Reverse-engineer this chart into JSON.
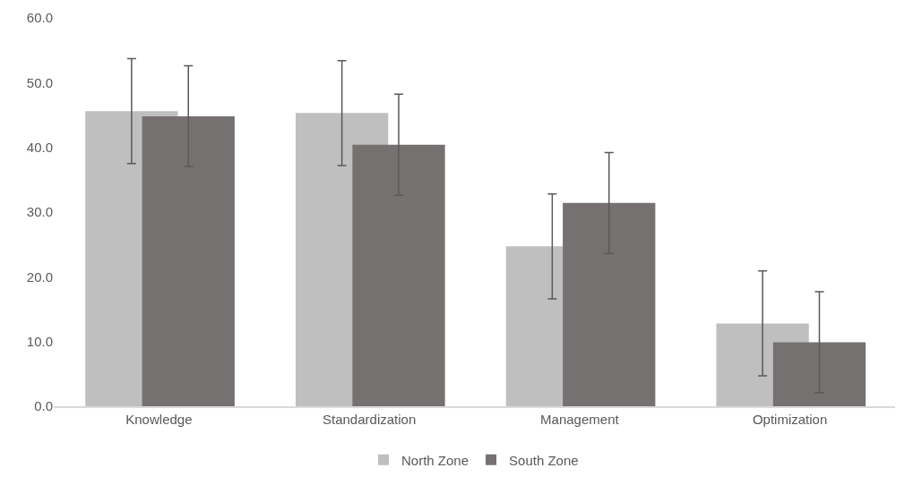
{
  "chart_data": {
    "type": "bar",
    "categories": [
      "Knowledge",
      "Standardization",
      "Management",
      "Optimization"
    ],
    "series": [
      {
        "name": "North Zone",
        "color": "#bfbfbf",
        "values": [
          45.6,
          45.3,
          24.7,
          12.8
        ],
        "errors": [
          8.1,
          8.1,
          8.1,
          8.1
        ]
      },
      {
        "name": "South Zone",
        "color": "#767171",
        "values": [
          44.8,
          40.4,
          31.4,
          9.9
        ],
        "errors": [
          7.8,
          7.8,
          7.8,
          7.8
        ]
      }
    ],
    "ylim": [
      0,
      60
    ],
    "yticks": [
      {
        "value": 0,
        "label": "0.0"
      },
      {
        "value": 10,
        "label": "10.0"
      },
      {
        "value": 20,
        "label": "20.0"
      },
      {
        "value": 30,
        "label": "30.0"
      },
      {
        "value": 40,
        "label": "40.0"
      },
      {
        "value": 50,
        "label": "50.0"
      },
      {
        "value": 60,
        "label": "60.0"
      }
    ],
    "grid": false,
    "legend": "bottom"
  }
}
